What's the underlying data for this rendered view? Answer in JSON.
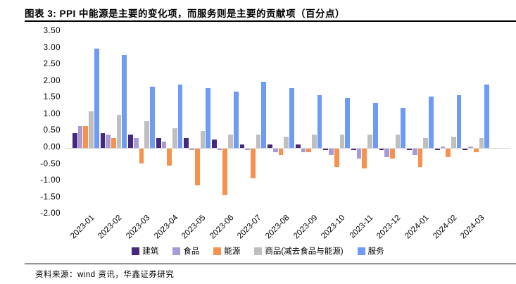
{
  "header": {
    "title": "图表 3: PPI 中能源是主要的变化项，而服务则是主要的贡献项（百分点）"
  },
  "footer": {
    "source": "资料来源：wind 资讯，华鑫证券研究"
  },
  "chart_data": {
    "type": "bar",
    "title": "图表 3: PPI 中能源是主要的变化项，而服务则是主要的贡献项（百分点）",
    "xlabel": "",
    "ylabel": "",
    "ylim": [
      -2.0,
      3.5
    ],
    "grid": false,
    "legend_position": "bottom",
    "yticks": [
      "3.50",
      "3.00",
      "2.50",
      "2.00",
      "1.50",
      "1.00",
      "0.50",
      "0.00",
      "-0.50",
      "-1.00",
      "-1.50",
      "-2.00"
    ],
    "categories": [
      "2023-01",
      "2023-02",
      "2023-03",
      "2023-04",
      "2023-05",
      "2023-06",
      "2023-07",
      "2023-08",
      "2023-09",
      "2023-10",
      "2023-11",
      "2023-12",
      "2024-01",
      "2024-02",
      "2024-03"
    ],
    "series": [
      {
        "name": "建筑",
        "color": "#46287c",
        "values": [
          0.45,
          0.45,
          0.4,
          0.3,
          0.3,
          0.25,
          0.1,
          0.1,
          0.1,
          -0.05,
          -0.05,
          -0.05,
          -0.05,
          -0.05,
          -0.05
        ]
      },
      {
        "name": "食品",
        "color": "#a89bd4",
        "values": [
          0.65,
          0.4,
          0.3,
          0.2,
          -0.05,
          -0.05,
          -0.05,
          -0.1,
          -0.1,
          -0.2,
          -0.3,
          -0.25,
          -0.2,
          0.05,
          0.05
        ]
      },
      {
        "name": "能源",
        "color": "#f6914e",
        "values": [
          0.65,
          0.3,
          -0.45,
          -0.5,
          -1.1,
          -1.4,
          -0.9,
          -0.2,
          -0.1,
          -0.55,
          -0.6,
          -0.3,
          -0.55,
          -0.25,
          -0.1
        ]
      },
      {
        "name": "商品(减去食品与能源)",
        "color": "#bfbfbf",
        "values": [
          1.1,
          1.0,
          0.8,
          0.6,
          0.5,
          0.4,
          0.4,
          0.35,
          0.4,
          0.4,
          0.4,
          0.4,
          0.3,
          0.35,
          0.3
        ]
      },
      {
        "name": "服务",
        "color": "#6d9bf5",
        "values": [
          3.0,
          2.8,
          1.85,
          1.9,
          1.8,
          1.7,
          2.0,
          1.8,
          1.6,
          1.5,
          1.35,
          1.2,
          1.55,
          1.6,
          1.9
        ]
      }
    ]
  }
}
